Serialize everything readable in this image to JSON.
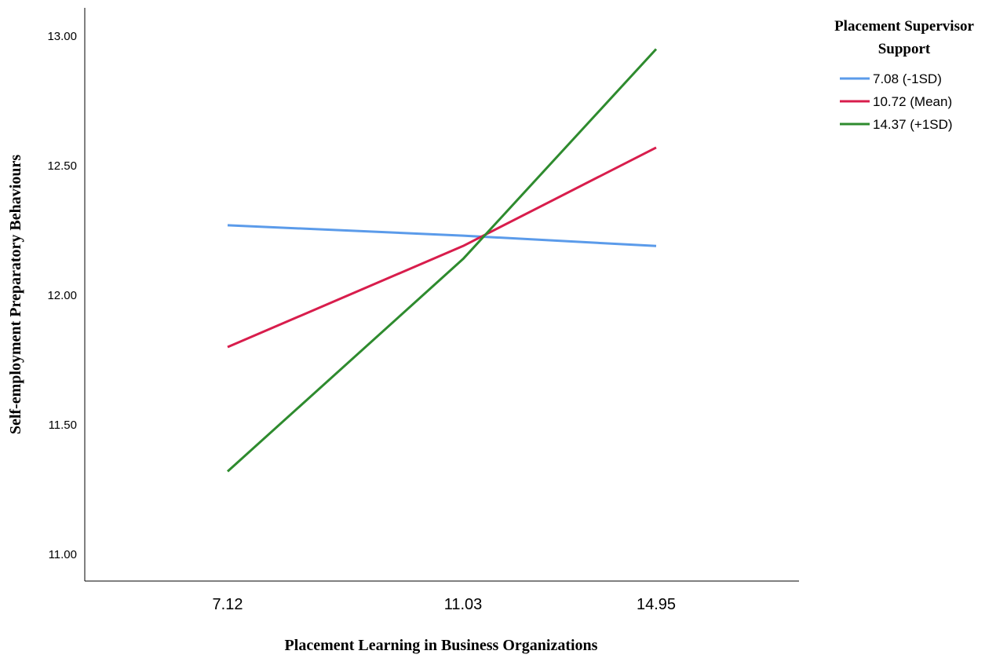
{
  "chart_data": {
    "type": "line",
    "xlabel": "Placement Learning in Business Organizations",
    "ylabel": "Self-employment Preparatory Behaviours",
    "x": [
      7.12,
      11.03,
      14.95
    ],
    "x_tick_labels": [
      "7.12",
      "11.03",
      "14.95"
    ],
    "ylim": [
      10.9,
      13.12
    ],
    "y_ticks": [
      11.0,
      11.5,
      12.0,
      12.5,
      13.0
    ],
    "y_tick_labels": [
      "11.00",
      "11.50",
      "12.00",
      "12.50",
      "13.00"
    ],
    "grid": false,
    "legend": {
      "title": [
        "Placement Supervisor",
        "Support"
      ],
      "placement": "top-right"
    },
    "series": [
      {
        "name": "7.08 (-1SD)",
        "color": "#5b9bea",
        "values": [
          12.27,
          12.23,
          12.19
        ]
      },
      {
        "name": "10.72 (Mean)",
        "color": "#d81d4c",
        "values": [
          11.8,
          12.19,
          12.57
        ]
      },
      {
        "name": "14.37 (+1SD)",
        "color": "#2e8b2e",
        "values": [
          11.32,
          12.14,
          12.95
        ]
      }
    ]
  }
}
